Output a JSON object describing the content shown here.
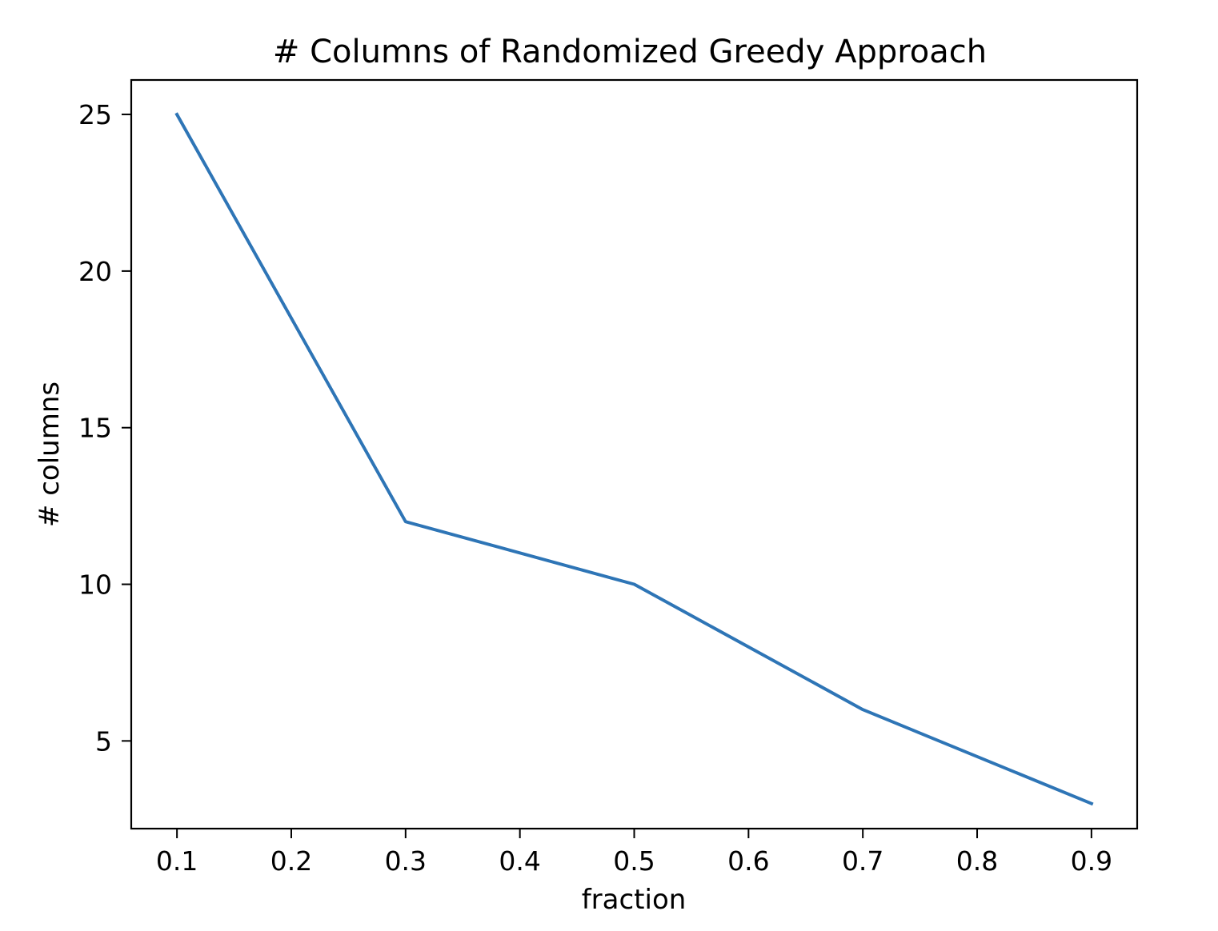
{
  "chart_data": {
    "type": "line",
    "title": "# Columns of Randomized Greedy Approach",
    "xlabel": "fraction",
    "ylabel": "# columns",
    "xlim": [
      0.06,
      0.94
    ],
    "ylim": [
      2.2,
      26.1
    ],
    "xticks": [
      0.1,
      0.2,
      0.3,
      0.4,
      0.5,
      0.6,
      0.7,
      0.8,
      0.9
    ],
    "xtick_labels": [
      "0.1",
      "0.2",
      "0.3",
      "0.4",
      "0.5",
      "0.6",
      "0.7",
      "0.8",
      "0.9"
    ],
    "yticks": [
      5,
      10,
      15,
      20,
      25
    ],
    "ytick_labels": [
      "5",
      "10",
      "15",
      "20",
      "25"
    ],
    "grid": false,
    "series": [
      {
        "color": "#2e75b6",
        "x": [
          0.1,
          0.3,
          0.5,
          0.7,
          0.9
        ],
        "y": [
          25,
          12,
          10,
          6,
          3
        ]
      }
    ]
  }
}
